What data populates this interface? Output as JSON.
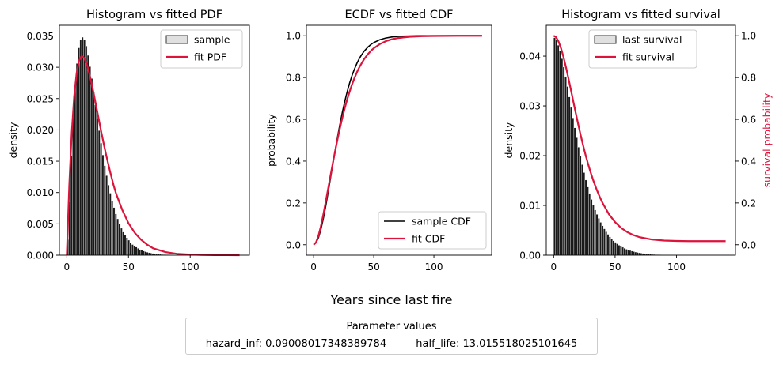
{
  "figure": {
    "supxlabel": "Years since last fire",
    "params_title": "Parameter values",
    "params": [
      {
        "text": "hazard_inf: 0.09008017348389784"
      },
      {
        "text": "half_life: 13.015518025101645"
      }
    ]
  },
  "chart_data": [
    {
      "type": "bar",
      "title": "Histogram vs fitted PDF",
      "xlabel": "",
      "ylabel": "density",
      "xlim": [
        -6,
        148
      ],
      "ylim": [
        0,
        0.0367
      ],
      "xticks": [
        0,
        50,
        100
      ],
      "yticks": [
        0.0,
        0.005,
        0.01,
        0.015,
        0.02,
        0.025,
        0.03,
        0.035
      ],
      "ytick_labels": [
        "0.000",
        "0.005",
        "0.010",
        "0.015",
        "0.020",
        "0.025",
        "0.030",
        "0.035"
      ],
      "legend_position": "top-right",
      "legend": [
        {
          "label": "sample",
          "kind": "patch",
          "color": "#e0e0e0"
        },
        {
          "label": "fit PDF",
          "kind": "line",
          "color": "#dc143c"
        }
      ],
      "colors": {
        "bars": "#1a1a1a",
        "fit": "#dc143c"
      },
      "hist": {
        "bin_width": 1.5,
        "bin_starts": [
          0,
          1.5,
          3,
          4.5,
          6,
          7.5,
          9,
          10.5,
          12,
          13.5,
          15,
          16.5,
          18,
          19.5,
          21,
          22.5,
          24,
          25.5,
          27,
          28.5,
          30,
          31.5,
          33,
          34.5,
          36,
          37.5,
          39,
          40.5,
          42,
          43.5,
          45,
          46.5,
          48,
          49.5,
          51,
          52.5,
          54,
          55.5,
          57,
          58.5,
          60,
          61.5,
          63,
          64.5,
          66,
          67.5,
          69,
          70.5,
          72,
          73.5,
          75,
          76.5,
          78,
          79.5,
          81,
          82.5,
          84,
          85.5,
          87,
          88.5,
          90,
          91.5,
          93,
          94.5,
          96,
          97.5,
          99
        ],
        "values": [
          0.0025,
          0.0085,
          0.0159,
          0.022,
          0.0269,
          0.0306,
          0.0331,
          0.0344,
          0.0348,
          0.0344,
          0.0334,
          0.0319,
          0.0301,
          0.0282,
          0.0261,
          0.024,
          0.0219,
          0.0199,
          0.0179,
          0.016,
          0.0143,
          0.0127,
          0.0112,
          0.0099,
          0.0087,
          0.0076,
          0.0066,
          0.0058,
          0.005,
          0.0043,
          0.0037,
          0.0032,
          0.0028,
          0.0024,
          0.002,
          0.0017,
          0.0015,
          0.0013,
          0.0011,
          0.0009,
          0.0008,
          0.00067,
          0.00057,
          0.00048,
          0.0004,
          0.00034,
          0.00029,
          0.00024,
          0.0002,
          0.00017,
          0.00014,
          0.00012,
          0.0001,
          8e-05,
          7e-05,
          6e-05,
          5e-05,
          4e-05,
          3e-05,
          2.5e-05,
          2e-05,
          1.7e-05,
          1.4e-05,
          1.2e-05,
          1e-05,
          8e-06,
          7e-06
        ]
      },
      "fit_curve": {
        "x": [
          0,
          2,
          4,
          6,
          8,
          10,
          12,
          14,
          16,
          18,
          20,
          22,
          24,
          26,
          28,
          30,
          32,
          35,
          38,
          40,
          45,
          50,
          55,
          60,
          65,
          70,
          75,
          80,
          90,
          100,
          110,
          120,
          130,
          140
        ],
        "y": [
          0.0,
          0.0111,
          0.0195,
          0.0254,
          0.0291,
          0.0311,
          0.0318,
          0.0315,
          0.0306,
          0.0292,
          0.0275,
          0.0256,
          0.0236,
          0.0216,
          0.0196,
          0.0177,
          0.0159,
          0.0134,
          0.0111,
          0.0098,
          0.0072,
          0.0051,
          0.0036,
          0.0025,
          0.0017,
          0.0011,
          0.0008,
          0.0005,
          0.0002,
          0.0001,
          4e-05,
          2e-05,
          1e-05,
          0.0
        ]
      }
    },
    {
      "type": "line",
      "title": "ECDF vs fitted CDF",
      "xlabel": "",
      "ylabel": "probability",
      "xlim": [
        -6,
        148
      ],
      "ylim": [
        -0.05,
        1.05
      ],
      "xticks": [
        0,
        50,
        100
      ],
      "yticks": [
        0.0,
        0.2,
        0.4,
        0.6,
        0.8,
        1.0
      ],
      "ytick_labels": [
        "0.0",
        "0.2",
        "0.4",
        "0.6",
        "0.8",
        "1.0"
      ],
      "legend_position": "bottom-right",
      "series": [
        {
          "name": "sample CDF",
          "color": "#000000",
          "x": [
            0,
            2,
            4,
            6,
            8,
            10,
            12,
            14,
            16,
            18,
            20,
            22,
            24,
            26,
            28,
            30,
            32,
            34,
            36,
            38,
            40,
            42,
            45,
            48,
            50,
            55,
            60,
            65,
            70,
            80,
            90,
            100,
            120,
            140
          ],
          "y": [
            0.0,
            0.009,
            0.033,
            0.072,
            0.123,
            0.182,
            0.248,
            0.317,
            0.386,
            0.454,
            0.519,
            0.58,
            0.637,
            0.688,
            0.734,
            0.775,
            0.811,
            0.841,
            0.868,
            0.891,
            0.91,
            0.926,
            0.945,
            0.96,
            0.967,
            0.981,
            0.989,
            0.994,
            0.997,
            0.999,
            1.0,
            1.0,
            1.0,
            1.0
          ]
        },
        {
          "name": "fit CDF",
          "color": "#dc143c",
          "x": [
            0,
            2,
            4,
            6,
            8,
            10,
            12,
            14,
            16,
            18,
            20,
            22,
            24,
            26,
            28,
            30,
            32,
            34,
            36,
            38,
            40,
            42,
            45,
            48,
            50,
            55,
            60,
            65,
            70,
            80,
            90,
            100,
            120,
            140
          ],
          "y": [
            0.0,
            0.011,
            0.042,
            0.087,
            0.142,
            0.203,
            0.266,
            0.329,
            0.391,
            0.451,
            0.508,
            0.561,
            0.61,
            0.656,
            0.697,
            0.734,
            0.768,
            0.798,
            0.825,
            0.849,
            0.869,
            0.888,
            0.911,
            0.93,
            0.94,
            0.96,
            0.974,
            0.983,
            0.989,
            0.995,
            0.998,
            0.999,
            1.0,
            1.0
          ]
        }
      ]
    },
    {
      "type": "bar",
      "title": "Histogram vs fitted survival",
      "xlabel": "",
      "ylabel": "density",
      "ylabel_right": "survival probability",
      "xlim": [
        -6,
        148
      ],
      "ylim": [
        0,
        0.0462
      ],
      "ylim_right": [
        -0.05,
        1.05
      ],
      "xticks": [
        0,
        50,
        100
      ],
      "yticks": [
        0.0,
        0.01,
        0.02,
        0.03,
        0.04
      ],
      "ytick_labels": [
        "0.00",
        "0.01",
        "0.02",
        "0.03",
        "0.04"
      ],
      "yticks_right": [
        0.0,
        0.2,
        0.4,
        0.6,
        0.8,
        1.0
      ],
      "ytick_labels_right": [
        "0.0",
        "0.2",
        "0.4",
        "0.6",
        "0.8",
        "1.0"
      ],
      "legend_position": "top-center",
      "legend": [
        {
          "label": "last survival",
          "kind": "patch",
          "color": "#e0e0e0"
        },
        {
          "label": "fit survival",
          "kind": "line",
          "color": "#dc143c"
        }
      ],
      "colors": {
        "bars": "#1a1a1a",
        "fit": "#dc143c",
        "right_axis_label": "#dc143c"
      },
      "hist": {
        "bin_width": 1.5,
        "bin_starts": [
          0,
          1.5,
          3,
          4.5,
          6,
          7.5,
          9,
          10.5,
          12,
          13.5,
          15,
          16.5,
          18,
          19.5,
          21,
          22.5,
          24,
          25.5,
          27,
          28.5,
          30,
          31.5,
          33,
          34.5,
          36,
          37.5,
          39,
          40.5,
          42,
          43.5,
          45,
          46.5,
          48,
          49.5,
          51,
          52.5,
          54,
          55.5,
          57,
          58.5,
          60,
          61.5,
          63,
          64.5,
          66,
          67.5,
          69,
          70.5,
          72,
          73.5,
          75,
          76.5,
          78,
          79.5,
          81,
          82.5,
          84,
          85.5,
          87,
          88.5,
          90
        ],
        "values": [
          0.0437,
          0.0432,
          0.0422,
          0.041,
          0.0395,
          0.0378,
          0.0359,
          0.0339,
          0.0318,
          0.0297,
          0.0276,
          0.0256,
          0.0236,
          0.0217,
          0.0199,
          0.0182,
          0.0166,
          0.0151,
          0.0137,
          0.0124,
          0.0112,
          0.0101,
          0.0091,
          0.0082,
          0.0074,
          0.0066,
          0.0059,
          0.0053,
          0.0047,
          0.0042,
          0.0037,
          0.0033,
          0.0029,
          0.0026,
          0.0023,
          0.002,
          0.0018,
          0.0016,
          0.0014,
          0.0012,
          0.0011,
          0.00095,
          0.00083,
          0.00072,
          0.00063,
          0.00055,
          0.00048,
          0.00041,
          0.00036,
          0.00031,
          0.00027,
          0.00023,
          0.0002,
          0.00017,
          0.00015,
          0.00013,
          0.00011,
          0.0001,
          8e-05,
          7e-05,
          6e-05
        ]
      },
      "fit_curve": {
        "x": [
          0,
          2,
          4,
          6,
          8,
          10,
          12,
          14,
          16,
          18,
          20,
          22,
          24,
          26,
          28,
          30,
          32,
          35,
          38,
          40,
          45,
          50,
          55,
          60,
          65,
          70,
          80,
          90,
          100,
          110,
          120,
          130,
          140
        ],
        "y": [
          1.0,
          0.993,
          0.972,
          0.94,
          0.898,
          0.85,
          0.797,
          0.742,
          0.686,
          0.63,
          0.576,
          0.524,
          0.475,
          0.429,
          0.387,
          0.348,
          0.312,
          0.264,
          0.222,
          0.198,
          0.146,
          0.108,
          0.08,
          0.06,
          0.046,
          0.036,
          0.025,
          0.02,
          0.018,
          0.017,
          0.017,
          0.017,
          0.017
        ]
      }
    }
  ]
}
